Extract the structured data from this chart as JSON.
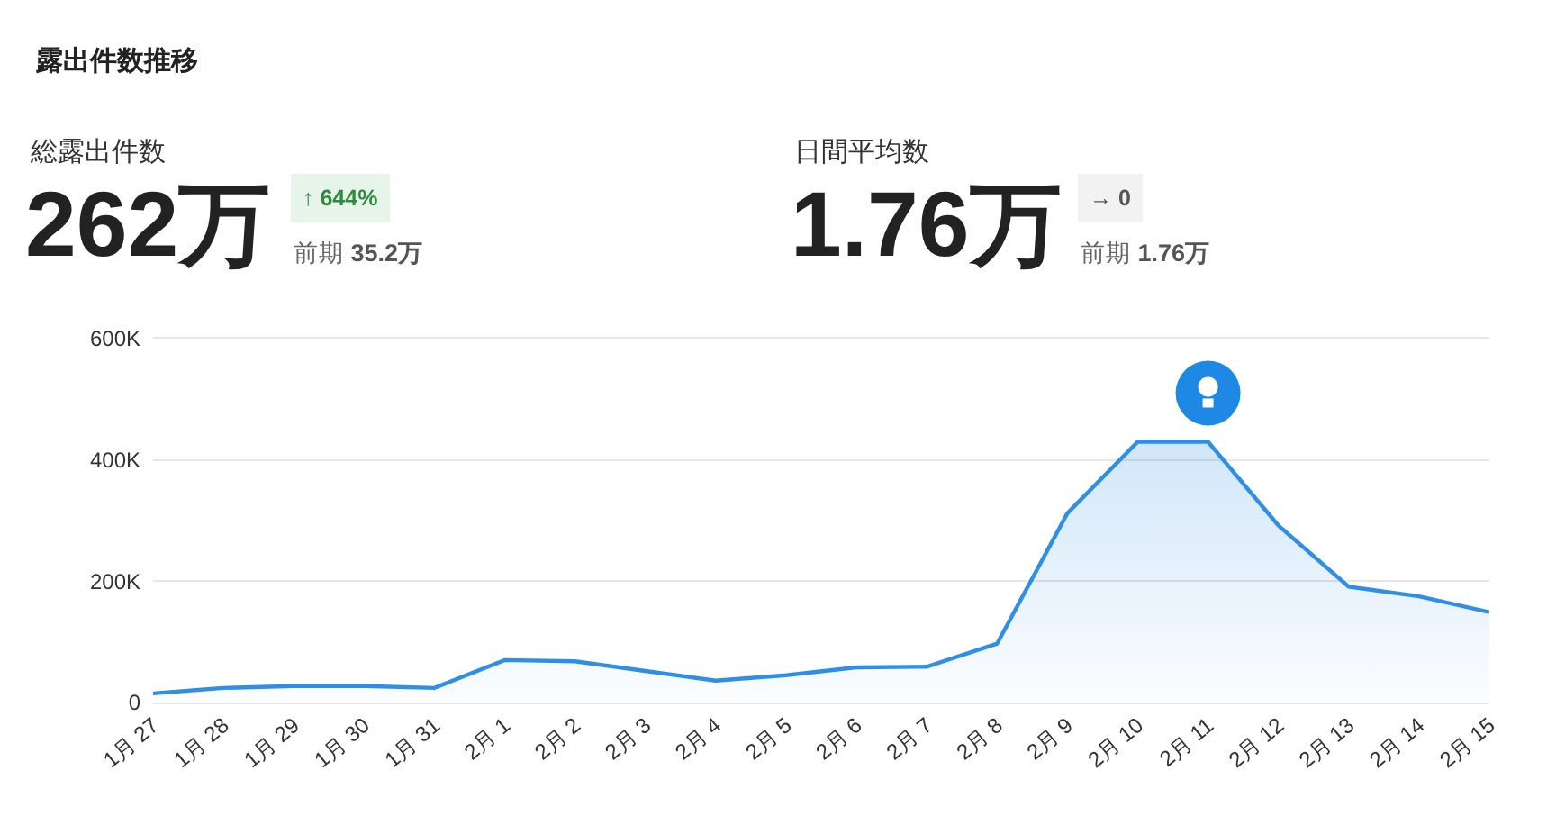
{
  "chart_data": {
    "type": "area",
    "title": "露出件数推移",
    "annotations": [
      "総露出件数",
      "262万",
      "↑ 644%",
      "前期 35.2万",
      "日間平均数",
      "1.76万",
      "→ 0",
      "前期 1.76万"
    ],
    "categories": [
      "1月 27",
      "1月 28",
      "1月 29",
      "1月 30",
      "1月 31",
      "2月 1",
      "2月 2",
      "2月 3",
      "2月 4",
      "2月 5",
      "2月 6",
      "2月 7",
      "2月 8",
      "2月 9",
      "2月 10",
      "2月 11",
      "2月 12",
      "2月 13",
      "2月 14",
      "2月 15"
    ],
    "values": [
      15000,
      24000,
      27000,
      27000,
      24000,
      70000,
      68000,
      52000,
      36000,
      45000,
      58000,
      59000,
      97000,
      312000,
      430000,
      430000,
      292000,
      191000,
      175000,
      149000
    ],
    "color": "#2f8ee5",
    "ylim": [
      0,
      600000
    ],
    "yticks": [
      0,
      {
        "value": 200000,
        "label": "200K"
      },
      {
        "value": 400000,
        "label": "400K"
      },
      {
        "value": 600000,
        "label": "600K"
      }
    ],
    "grid": "y"
  }
}
